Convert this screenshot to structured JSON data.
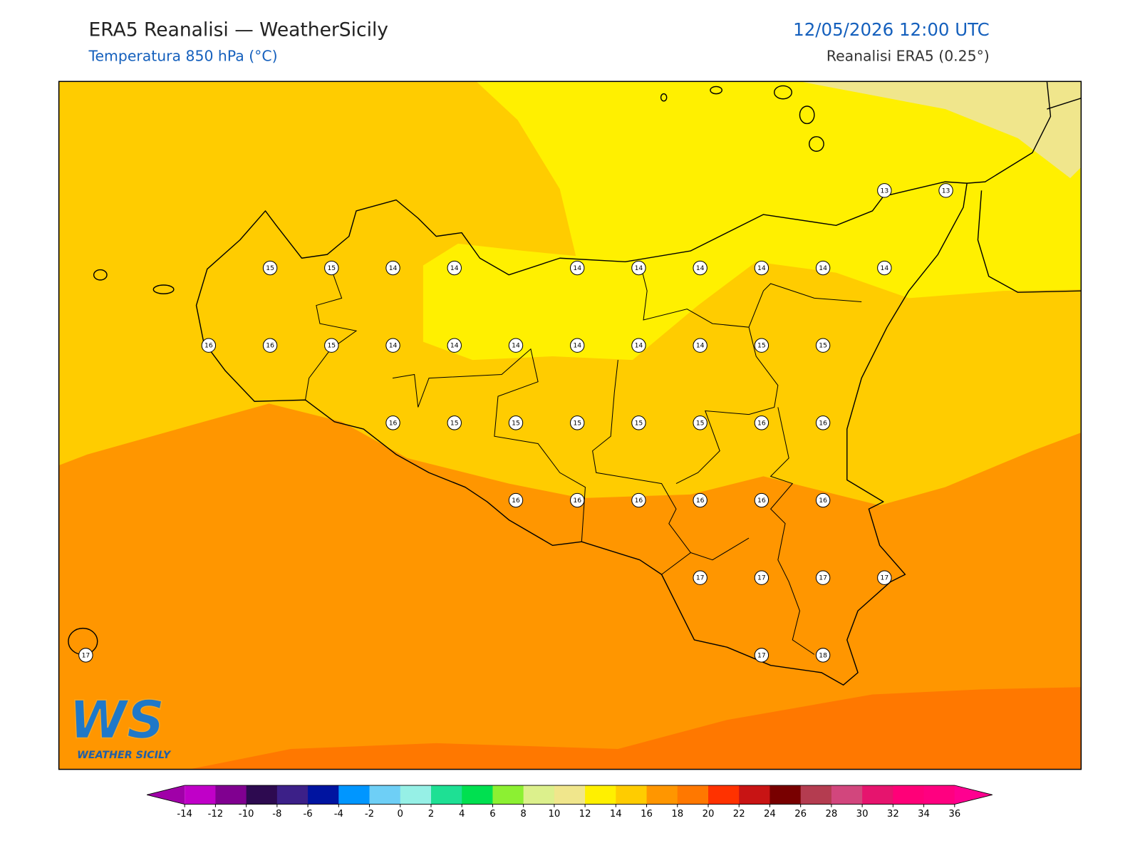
{
  "header": {
    "title": "ERA5 Reanalisi — WeatherSicily",
    "subtitle": "Temperatura 850 hPa (°C)",
    "datetime": "12/05/2026 12:00 UTC",
    "source": "Reanalisi ERA5 (0.25°)"
  },
  "map": {
    "point_labels": [
      [
        null,
        null,
        null,
        null,
        null,
        null,
        null,
        null,
        null,
        null,
        null,
        null,
        null,
        13,
        13
      ],
      [
        null,
        null,
        null,
        15,
        15,
        14,
        14,
        null,
        14,
        14,
        14,
        14,
        14,
        14,
        null
      ],
      [
        null,
        null,
        16,
        16,
        15,
        14,
        14,
        14,
        14,
        14,
        14,
        15,
        15,
        null,
        null
      ],
      [
        null,
        null,
        null,
        null,
        null,
        16,
        15,
        15,
        15,
        15,
        15,
        16,
        16,
        null,
        null
      ],
      [
        null,
        null,
        null,
        null,
        null,
        null,
        null,
        16,
        16,
        16,
        16,
        16,
        16,
        null,
        null
      ],
      [
        null,
        null,
        null,
        null,
        null,
        null,
        null,
        null,
        null,
        null,
        17,
        17,
        17,
        17,
        null
      ],
      [
        17,
        null,
        null,
        null,
        null,
        null,
        null,
        null,
        null,
        null,
        null,
        17,
        18,
        null,
        null
      ]
    ]
  },
  "logo": {
    "letters": "WS",
    "name": "WEATHER SICILY"
  },
  "colorbar": {
    "ticks": [
      -14,
      -12,
      -10,
      -8,
      -6,
      -4,
      -2,
      0,
      2,
      4,
      6,
      8,
      10,
      12,
      14,
      16,
      18,
      20,
      22,
      24,
      26,
      28,
      30,
      32,
      34,
      36
    ],
    "under_color": "#a000a8",
    "colors": [
      "#c000c8",
      "#800090",
      "#2d0a50",
      "#3c2088",
      "#0014a0",
      "#0096ff",
      "#6ecff6",
      "#96f0e6",
      "#1ee094",
      "#00e050",
      "#8cf032",
      "#dcf08c",
      "#f0e68c",
      "#fff000",
      "#ffcc00",
      "#ff9600",
      "#ff7800",
      "#ff3200",
      "#c81414",
      "#780000",
      "#b43c50",
      "#d2467d",
      "#e6146e",
      "#ff0078",
      "#ff0080"
    ],
    "over_color": "#ff0090"
  }
}
